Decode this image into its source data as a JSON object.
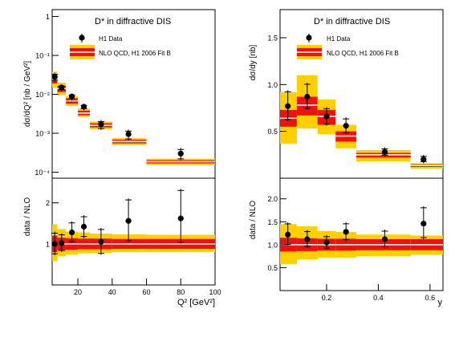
{
  "colors": {
    "outer_band": "#FFD000",
    "inner_band": "#EE1111",
    "central_line": "#FFFFFF",
    "axis": "#000000",
    "marker": "#000000"
  },
  "chart_data": [
    {
      "type": "scatter",
      "panel": "top-left",
      "title": "D* in diffractive DIS",
      "ylabel": "dσ/dQ² [nb / GeV²]",
      "xlabel": "",
      "yscale": "log",
      "ylim": [
        7e-05,
        1.5
      ],
      "xlim": [
        5,
        100
      ],
      "yticks": [
        "10⁻⁴",
        "10⁻³",
        "10⁻²",
        "10⁻¹",
        "1"
      ],
      "legend": {
        "position": "top-left",
        "entries": [
          "H1 Data",
          "NLO QCD, H1 2006 Fit B"
        ]
      },
      "data": [
        {
          "x": 6.5,
          "y": 0.028,
          "err_lo": 0.007,
          "err_hi": 0.008
        },
        {
          "x": 10.5,
          "y": 0.015,
          "err_lo": 0.003,
          "err_hi": 0.003
        },
        {
          "x": 16.5,
          "y": 0.0088,
          "err_lo": 0.0018,
          "err_hi": 0.0018
        },
        {
          "x": 23.5,
          "y": 0.0048,
          "err_lo": 0.0009,
          "err_hi": 0.0009
        },
        {
          "x": 33.5,
          "y": 0.0017,
          "err_lo": 0.0005,
          "err_hi": 0.0005
        },
        {
          "x": 49.5,
          "y": 0.00095,
          "err_lo": 0.0003,
          "err_hi": 0.0003
        },
        {
          "x": 80,
          "y": 0.0003,
          "err_lo": 0.0001,
          "err_hi": 0.00012
        }
      ],
      "nlo": [
        {
          "x0": 5,
          "x1": 8,
          "c": 0.024,
          "in_lo": 0.019,
          "in_hi": 0.03,
          "out_lo": 0.015,
          "out_hi": 0.038
        },
        {
          "x0": 8,
          "x1": 13,
          "c": 0.014,
          "in_lo": 0.0115,
          "in_hi": 0.0165,
          "out_lo": 0.0095,
          "out_hi": 0.02
        },
        {
          "x0": 13,
          "x1": 20,
          "c": 0.0068,
          "in_lo": 0.0058,
          "in_hi": 0.0079,
          "out_lo": 0.005,
          "out_hi": 0.009
        },
        {
          "x0": 20,
          "x1": 27,
          "c": 0.0033,
          "in_lo": 0.0029,
          "in_hi": 0.0038,
          "out_lo": 0.0026,
          "out_hi": 0.0043
        },
        {
          "x0": 27,
          "x1": 40,
          "c": 0.0016,
          "in_lo": 0.00142,
          "in_hi": 0.0018,
          "out_lo": 0.00128,
          "out_hi": 0.002
        },
        {
          "x0": 40,
          "x1": 60,
          "c": 0.00061,
          "in_lo": 0.00055,
          "in_hi": 0.00068,
          "out_lo": 0.0005,
          "out_hi": 0.00075
        },
        {
          "x0": 60,
          "x1": 100,
          "c": 0.000185,
          "in_lo": 0.000168,
          "in_hi": 0.000203,
          "out_lo": 0.000152,
          "out_hi": 0.000222
        }
      ]
    },
    {
      "type": "scatter",
      "panel": "top-right",
      "title": "D* in diffractive DIS",
      "ylabel": "dσ/dy [nb]",
      "xlabel": "",
      "yscale": "linear",
      "ylim": [
        0,
        1.8
      ],
      "xlim": [
        0.02,
        0.65
      ],
      "yticks": [
        "0.5",
        "1.0",
        "1.5"
      ],
      "legend": {
        "position": "top-left",
        "entries": [
          "H1 Data",
          "NLO QCD, H1 2006 Fit B"
        ]
      },
      "data": [
        {
          "x": 0.05,
          "y": 0.77,
          "err_lo": 0.16,
          "err_hi": 0.17
        },
        {
          "x": 0.125,
          "y": 0.87,
          "err_lo": 0.14,
          "err_hi": 0.15
        },
        {
          "x": 0.2,
          "y": 0.66,
          "err_lo": 0.1,
          "err_hi": 0.1
        },
        {
          "x": 0.275,
          "y": 0.56,
          "err_lo": 0.09,
          "err_hi": 0.09
        },
        {
          "x": 0.425,
          "y": 0.28,
          "err_lo": 0.05,
          "err_hi": 0.05
        },
        {
          "x": 0.575,
          "y": 0.2,
          "err_lo": 0.04,
          "err_hi": 0.05
        }
      ],
      "nlo": [
        {
          "x0": 0.02,
          "x1": 0.085,
          "c": 0.64,
          "in_lo": 0.55,
          "in_hi": 0.73,
          "out_lo": 0.37,
          "out_hi": 0.92
        },
        {
          "x0": 0.085,
          "x1": 0.165,
          "c": 0.78,
          "in_lo": 0.67,
          "in_hi": 0.87,
          "out_lo": 0.53,
          "out_hi": 1.1
        },
        {
          "x0": 0.165,
          "x1": 0.235,
          "c": 0.66,
          "in_lo": 0.57,
          "in_hi": 0.73,
          "out_lo": 0.47,
          "out_hi": 0.84
        },
        {
          "x0": 0.235,
          "x1": 0.315,
          "c": 0.45,
          "in_lo": 0.39,
          "in_hi": 0.5,
          "out_lo": 0.32,
          "out_hi": 0.57
        },
        {
          "x0": 0.315,
          "x1": 0.525,
          "c": 0.25,
          "in_lo": 0.22,
          "in_hi": 0.27,
          "out_lo": 0.18,
          "out_hi": 0.3
        },
        {
          "x0": 0.525,
          "x1": 0.65,
          "c": 0.135,
          "in_lo": 0.12,
          "in_hi": 0.148,
          "out_lo": 0.1,
          "out_hi": 0.16
        }
      ]
    },
    {
      "type": "scatter",
      "panel": "bottom-left",
      "title": "",
      "ylabel": "data / NLO",
      "xlabel": "Q² [GeV²]",
      "yscale": "linear",
      "ylim": [
        0,
        2.6
      ],
      "xlim": [
        5,
        100
      ],
      "yticks": [
        "1",
        "2"
      ],
      "xticks": [
        "20",
        "40",
        "60",
        "80",
        "100"
      ],
      "data": [
        {
          "x": 6.5,
          "y": 1.0,
          "err_lo": 0.28,
          "err_hi": 0.3
        },
        {
          "x": 10.5,
          "y": 1.02,
          "err_lo": 0.22,
          "err_hi": 0.24
        },
        {
          "x": 16.5,
          "y": 1.28,
          "err_lo": 0.26,
          "err_hi": 0.27
        },
        {
          "x": 23.5,
          "y": 1.42,
          "err_lo": 0.28,
          "err_hi": 0.28
        },
        {
          "x": 33.5,
          "y": 1.05,
          "err_lo": 0.32,
          "err_hi": 0.34
        },
        {
          "x": 49.5,
          "y": 1.56,
          "err_lo": 0.52,
          "err_hi": 0.55
        },
        {
          "x": 80,
          "y": 1.62,
          "err_lo": 0.62,
          "err_hi": 0.72
        }
      ],
      "nlo": [
        {
          "x0": 5,
          "x1": 8,
          "c": 1.0,
          "in_lo": 0.8,
          "in_hi": 1.2,
          "out_lo": 0.58,
          "out_hi": 1.48
        },
        {
          "x0": 8,
          "x1": 13,
          "c": 1.0,
          "in_lo": 0.85,
          "in_hi": 1.15,
          "out_lo": 0.7,
          "out_hi": 1.36
        },
        {
          "x0": 13,
          "x1": 20,
          "c": 1.0,
          "in_lo": 0.86,
          "in_hi": 1.14,
          "out_lo": 0.74,
          "out_hi": 1.3
        },
        {
          "x0": 20,
          "x1": 27,
          "c": 1.0,
          "in_lo": 0.87,
          "in_hi": 1.13,
          "out_lo": 0.77,
          "out_hi": 1.28
        },
        {
          "x0": 27,
          "x1": 40,
          "c": 1.0,
          "in_lo": 0.87,
          "in_hi": 1.13,
          "out_lo": 0.78,
          "out_hi": 1.25
        },
        {
          "x0": 40,
          "x1": 60,
          "c": 1.0,
          "in_lo": 0.88,
          "in_hi": 1.12,
          "out_lo": 0.8,
          "out_hi": 1.23
        },
        {
          "x0": 60,
          "x1": 100,
          "c": 1.0,
          "in_lo": 0.88,
          "in_hi": 1.12,
          "out_lo": 0.8,
          "out_hi": 1.22
        }
      ]
    },
    {
      "type": "scatter",
      "panel": "bottom-right",
      "title": "",
      "ylabel": "data / NLO",
      "xlabel": "y",
      "yscale": "linear",
      "ylim": [
        0,
        2.45
      ],
      "xlim": [
        0.02,
        0.65
      ],
      "yticks": [
        "0.5",
        "1.0",
        "1.5",
        "2.0"
      ],
      "xticks": [
        "0.2",
        "0.4",
        "0.6"
      ],
      "data": [
        {
          "x": 0.05,
          "y": 1.22,
          "err_lo": 0.25,
          "err_hi": 0.27
        },
        {
          "x": 0.125,
          "y": 1.12,
          "err_lo": 0.19,
          "err_hi": 0.2
        },
        {
          "x": 0.2,
          "y": 1.05,
          "err_lo": 0.16,
          "err_hi": 0.16
        },
        {
          "x": 0.275,
          "y": 1.28,
          "err_lo": 0.2,
          "err_hi": 0.21
        },
        {
          "x": 0.425,
          "y": 1.12,
          "err_lo": 0.2,
          "err_hi": 0.21
        },
        {
          "x": 0.575,
          "y": 1.46,
          "err_lo": 0.34,
          "err_hi": 0.38
        }
      ],
      "nlo": [
        {
          "x0": 0.02,
          "x1": 0.085,
          "c": 1.0,
          "in_lo": 0.85,
          "in_hi": 1.15,
          "out_lo": 0.58,
          "out_hi": 1.45
        },
        {
          "x0": 0.085,
          "x1": 0.165,
          "c": 1.0,
          "in_lo": 0.86,
          "in_hi": 1.14,
          "out_lo": 0.68,
          "out_hi": 1.4
        },
        {
          "x0": 0.165,
          "x1": 0.235,
          "c": 1.0,
          "in_lo": 0.87,
          "in_hi": 1.13,
          "out_lo": 0.72,
          "out_hi": 1.3
        },
        {
          "x0": 0.235,
          "x1": 0.315,
          "c": 1.0,
          "in_lo": 0.87,
          "in_hi": 1.13,
          "out_lo": 0.72,
          "out_hi": 1.28
        },
        {
          "x0": 0.315,
          "x1": 0.525,
          "c": 1.0,
          "in_lo": 0.88,
          "in_hi": 1.12,
          "out_lo": 0.75,
          "out_hi": 1.22
        },
        {
          "x0": 0.525,
          "x1": 0.65,
          "c": 1.0,
          "in_lo": 0.88,
          "in_hi": 1.12,
          "out_lo": 0.78,
          "out_hi": 1.2
        }
      ]
    }
  ]
}
